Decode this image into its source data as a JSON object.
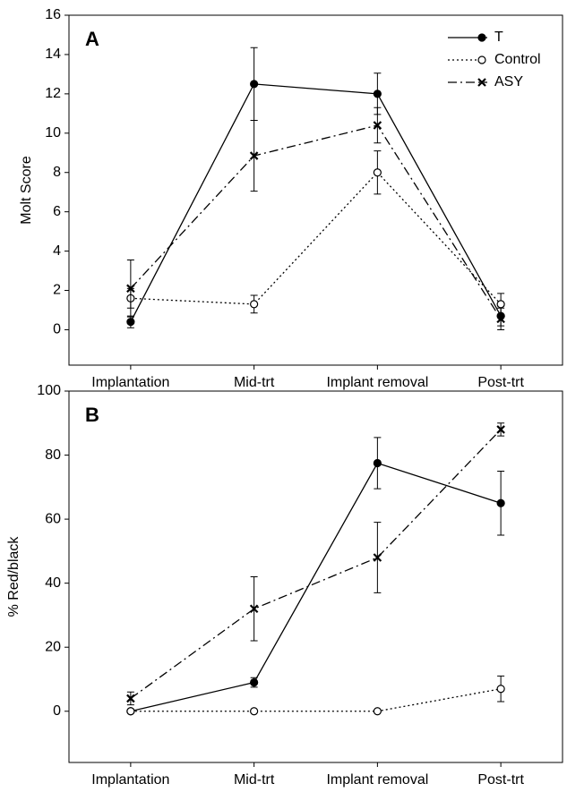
{
  "chart_data": [
    {
      "type": "line",
      "panel_label": "A",
      "ylabel": "Molt Score",
      "categories": [
        "Implantation",
        "Mid-trt",
        "Implant removal",
        "Post-trt"
      ],
      "ylim": [
        -1.8,
        16
      ],
      "yticks": [
        0,
        2,
        4,
        6,
        8,
        10,
        12,
        14,
        16
      ],
      "legend": "upper right",
      "series": [
        {
          "name": "T",
          "color": "#000000",
          "style": "solid",
          "marker": "filled-circle",
          "values": [
            0.4,
            12.5,
            12.0,
            0.7
          ],
          "errors": [
            0.3,
            1.85,
            1.05,
            0.5
          ]
        },
        {
          "name": "Control",
          "color": "#000000",
          "style": "dotted",
          "marker": "open-circle",
          "values": [
            1.6,
            1.3,
            8.0,
            1.3
          ],
          "errors": [
            0.5,
            0.45,
            1.1,
            0.55
          ]
        },
        {
          "name": "ASY",
          "color": "#000000",
          "style": "dashdot",
          "marker": "x",
          "values": [
            2.1,
            8.85,
            10.4,
            0.55
          ],
          "errors": [
            1.45,
            1.8,
            0.9,
            0.55
          ]
        }
      ]
    },
    {
      "type": "line",
      "panel_label": "B",
      "ylabel": "% Red/black",
      "categories": [
        "Implantation",
        "Mid-trt",
        "Implant removal",
        "Post-trt"
      ],
      "ylim": [
        -16,
        100
      ],
      "yticks": [
        0,
        20,
        40,
        60,
        80,
        100
      ],
      "series": [
        {
          "color": "#000000",
          "style": "solid",
          "marker": "filled-circle",
          "values": [
            0,
            9,
            77.5,
            65
          ],
          "errors": [
            0.5,
            1.5,
            8,
            10
          ]
        },
        {
          "color": "#000000",
          "style": "dotted",
          "marker": "open-circle",
          "values": [
            0,
            0,
            0,
            7
          ],
          "errors": [
            0,
            0,
            0,
            4
          ]
        },
        {
          "color": "#000000",
          "style": "dashdot",
          "marker": "x",
          "values": [
            4,
            32,
            48,
            88
          ],
          "errors": [
            2,
            10,
            11,
            2
          ]
        }
      ]
    }
  ]
}
